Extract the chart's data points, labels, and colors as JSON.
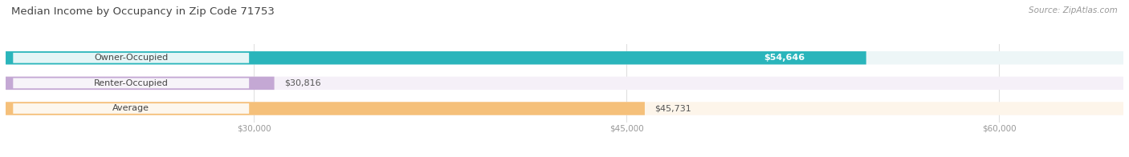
{
  "title": "Median Income by Occupancy in Zip Code 71753",
  "source": "Source: ZipAtlas.com",
  "categories": [
    "Owner-Occupied",
    "Renter-Occupied",
    "Average"
  ],
  "values": [
    54646,
    30816,
    45731
  ],
  "labels": [
    "$54,646",
    "$30,816",
    "$45,731"
  ],
  "bar_colors": [
    "#2ab5bb",
    "#c4a8d4",
    "#f5c07a"
  ],
  "bar_bg_colors": [
    "#edf6f7",
    "#f5f0f8",
    "#fdf5ea"
  ],
  "value_badge_color": [
    "#2ab5bb",
    null,
    null
  ],
  "xlim": [
    20000,
    65000
  ],
  "xticks": [
    30000,
    45000,
    60000
  ],
  "xtick_labels": [
    "$30,000",
    "$45,000",
    "$60,000"
  ],
  "bar_height": 0.52,
  "bar_gap": 0.38,
  "figsize": [
    14.06,
    1.96
  ],
  "dpi": 100,
  "title_fontsize": 9.5,
  "label_fontsize": 8,
  "tick_fontsize": 7.5,
  "source_fontsize": 7.5,
  "title_color": "#444444",
  "source_color": "#999999",
  "tick_color": "#999999",
  "value_label_color": "#555555",
  "category_label_color": "#444444",
  "grid_color": "#e0e0e0",
  "bg_color": "#f7f7f7"
}
